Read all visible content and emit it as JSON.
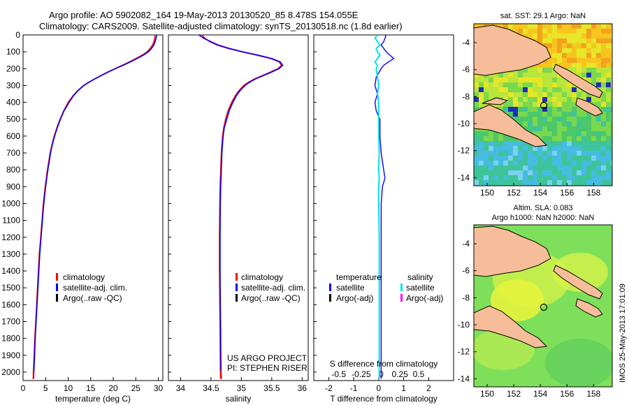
{
  "title": {
    "line1": "Argo profile: AO 5902082_164 19-May-2013 20130520_85 8.478S 154.055E",
    "line2": "Climatology: CARS2009. Satellite-adjusted climatology: synTS_20130518.nc (1.8d earlier)"
  },
  "colors": {
    "climatology": "#ff0000",
    "satellite": "#0000ff",
    "argo": "#000000",
    "salinity_satellite": "#00e5e5",
    "salinity_argo": "#ff00ff"
  },
  "depth_axis": {
    "range": [
      0,
      2050
    ],
    "ticks": [
      0,
      100,
      200,
      300,
      400,
      500,
      600,
      700,
      800,
      900,
      1000,
      1100,
      1200,
      1300,
      1400,
      1500,
      1600,
      1700,
      1800,
      1900,
      2000
    ]
  },
  "legend_profiles": {
    "climatology": "climatology",
    "satellite": "satellite-adj. clim.",
    "argo": "Argo(..raw -QC)"
  },
  "legend_diff": {
    "temperature": "temperature",
    "salinity": "salinity",
    "t_satellite": "satellite",
    "t_argo": "Argo(-adj)",
    "s_satellite": "satellite",
    "s_argo": "Argo(-adj)"
  },
  "credit": {
    "line1": "US ARGO PROJECT",
    "line2": "PI: STEPHEN RISER"
  },
  "sidebar_stamp": "IMOS 25-May-2013 17:01:09",
  "chart_data": [
    {
      "type": "line",
      "name": "temperature-profile",
      "xlabel": "temperature (deg C)",
      "ylabel": "depth",
      "xlim": [
        0,
        31
      ],
      "ylim": [
        2050,
        0
      ],
      "xticks": [
        0,
        5,
        10,
        15,
        20,
        25,
        30
      ],
      "depth": [
        0,
        20,
        40,
        60,
        80,
        100,
        120,
        140,
        160,
        180,
        200,
        220,
        240,
        260,
        280,
        300,
        330,
        360,
        400,
        450,
        500,
        550,
        600,
        650,
        700,
        800,
        900,
        1000,
        1100,
        1200,
        1300,
        1400,
        1500,
        1600,
        1700,
        1800,
        1900,
        2000,
        2040
      ],
      "series": [
        {
          "name": "climatology",
          "values": [
            29.3,
            29.2,
            29.0,
            28.7,
            28.2,
            27.5,
            26.4,
            25.0,
            23.6,
            22.0,
            20.4,
            18.8,
            17.3,
            15.9,
            14.6,
            13.4,
            12.1,
            11.1,
            10.0,
            9.0,
            8.2,
            7.5,
            6.9,
            6.4,
            6.0,
            5.4,
            4.9,
            4.5,
            4.2,
            3.9,
            3.6,
            3.4,
            3.2,
            3.0,
            2.8,
            2.6,
            2.45,
            2.3,
            2.25
          ]
        },
        {
          "name": "satellite-adj. clim.",
          "values": [
            29.6,
            29.5,
            29.3,
            29.0,
            28.5,
            27.8,
            26.7,
            25.3,
            23.8,
            22.2,
            20.5,
            18.9,
            17.4,
            16.0,
            14.7,
            13.5,
            12.2,
            11.2,
            10.2,
            9.1,
            8.3,
            7.6,
            7.0,
            6.5,
            6.1,
            5.5,
            5.0,
            4.6,
            4.3,
            4.0,
            3.7,
            3.5,
            3.3,
            3.1,
            2.9,
            2.7,
            2.55,
            2.4,
            2.35
          ]
        }
      ]
    },
    {
      "type": "line",
      "name": "salinity-profile",
      "xlabel": "salinity",
      "ylabel": "depth",
      "xlim": [
        33.8,
        36.1
      ],
      "ylim": [
        2050,
        0
      ],
      "xticks": [
        34,
        34.5,
        35,
        35.5,
        36
      ],
      "depth": [
        0,
        20,
        40,
        60,
        80,
        100,
        120,
        140,
        160,
        180,
        200,
        220,
        240,
        260,
        280,
        300,
        330,
        360,
        400,
        450,
        500,
        550,
        600,
        650,
        700,
        800,
        900,
        1000,
        1200,
        1400,
        1600,
        1800,
        2000,
        2040
      ],
      "series": [
        {
          "name": "climatology",
          "values": [
            34.35,
            34.4,
            34.48,
            34.6,
            34.78,
            35.0,
            35.25,
            35.48,
            35.62,
            35.66,
            35.6,
            35.48,
            35.35,
            35.22,
            35.12,
            35.04,
            34.96,
            34.9,
            34.84,
            34.78,
            34.74,
            34.71,
            34.69,
            34.68,
            34.67,
            34.66,
            34.65,
            34.645,
            34.64,
            34.64,
            34.645,
            34.65,
            34.655,
            34.66
          ]
        },
        {
          "name": "satellite-adj. clim.",
          "values": [
            34.3,
            34.38,
            34.5,
            34.62,
            34.8,
            35.02,
            35.28,
            35.5,
            35.64,
            35.68,
            35.62,
            35.5,
            35.37,
            35.24,
            35.14,
            35.06,
            34.98,
            34.92,
            34.86,
            34.8,
            34.76,
            34.72,
            34.7,
            34.69,
            34.68,
            34.67,
            34.66,
            34.655,
            34.65,
            34.65,
            34.655,
            34.66,
            34.665,
            34.67
          ]
        }
      ]
    },
    {
      "type": "line",
      "name": "difference-from-climatology",
      "xlabel_top": "S difference from climatology",
      "xlabel_bottom": "T difference from climatology",
      "ylim": [
        2050,
        0
      ],
      "t_xlim": [
        -2.6,
        3.0
      ],
      "t_ticks": [
        -2,
        -1,
        0,
        1,
        2
      ],
      "s_tick_labels": [
        "-0.5",
        "-0.25",
        "0",
        "0.25",
        "0.5"
      ],
      "s_tick_values_in_t_units": [
        -1.6,
        -0.7,
        0.1,
        0.85,
        1.6
      ],
      "depth": [
        0,
        20,
        40,
        60,
        80,
        100,
        120,
        140,
        160,
        180,
        200,
        250,
        300,
        350,
        400,
        450,
        500,
        600,
        700,
        800,
        850,
        900,
        1000,
        1200,
        1400,
        1600,
        1800,
        2000,
        2040
      ],
      "series": [
        {
          "name": "temperature satellite",
          "values": [
            0.3,
            0.25,
            0.2,
            0.1,
            0.2,
            0.3,
            0.45,
            0.6,
            0.4,
            0.2,
            0.1,
            -0.1,
            -0.15,
            -0.05,
            -0.15,
            -0.1,
            0.05,
            0.05,
            0.1,
            0.2,
            0.25,
            0.15,
            0.1,
            0.1,
            0.1,
            0.1,
            0.1,
            0.1,
            0.1
          ]
        },
        {
          "name": "salinity satellite",
          "values": [
            -0.05,
            -0.15,
            -0.05,
            0.05,
            -0.1,
            -0.05,
            0.05,
            -0.05,
            -0.15,
            -0.05,
            -0.1,
            -0.05,
            0.0,
            -0.05,
            0.0,
            0.0,
            0.0,
            0.0,
            0.02,
            0.0,
            0.02,
            0.0,
            0.0,
            0.02,
            0.02,
            0.02,
            0.02,
            0.02,
            0.02
          ]
        }
      ]
    },
    {
      "type": "heatmap",
      "name": "sst-map",
      "title": "sat. SST: 29.1  Argo: NaN",
      "xlim": [
        149,
        159.4
      ],
      "ylim": [
        -14.6,
        -2.6
      ],
      "xticks": [
        150,
        152,
        154,
        156,
        158
      ],
      "yticks": [
        -4,
        -6,
        -8,
        -10,
        -12,
        -14
      ],
      "float_position": [
        154.055,
        -8.478
      ]
    },
    {
      "type": "heatmap",
      "name": "sla-map",
      "title_line1": "Altim. SLA: 0.083",
      "title_line2": "Argo h1000: NaN h2000: NaN",
      "xlim": [
        149,
        159.4
      ],
      "ylim": [
        -14.6,
        -2.6
      ],
      "xticks": [
        150,
        152,
        154,
        156,
        158
      ],
      "yticks": [
        -4,
        -6,
        -8,
        -10,
        -12,
        -14
      ],
      "float_position": [
        154.055,
        -8.478
      ]
    }
  ]
}
